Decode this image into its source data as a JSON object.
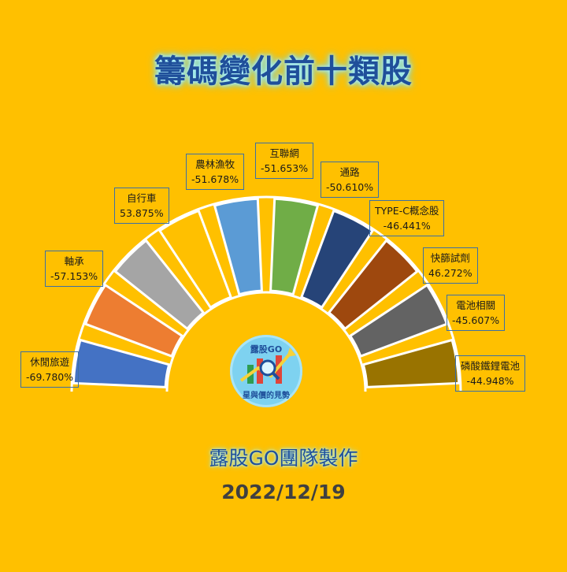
{
  "title": "籌碼變化前十類股",
  "footer": {
    "team": "露股GO團隊製作",
    "date": "2022/12/19"
  },
  "logo": {
    "top_text": "露股GO",
    "bottom_text": "星與價的見勢"
  },
  "chart_data": {
    "type": "bar",
    "layout": "radial-semicircle",
    "categories": [
      "休閒旅遊",
      "軸承",
      "自行車",
      "農林漁牧",
      "互聯網",
      "通路",
      "TYPE-C概念股",
      "快篩試劑",
      "電池相關",
      "磷酸鐵鋰電池"
    ],
    "values": [
      -69.78,
      -57.153,
      53.875,
      -51.678,
      -51.653,
      -50.61,
      -46.441,
      46.272,
      -45.607,
      -44.948
    ],
    "value_labels": [
      "-69.780%",
      "-57.153%",
      "53.875%",
      "-51.678%",
      "-51.653%",
      "-50.610%",
      "-46.441%",
      "46.272%",
      "-45.607%",
      "-44.948%"
    ],
    "colors": [
      "#4472C4",
      "#ED7D31",
      "#A5A5A5",
      "#FFC000",
      "#5B9BD5",
      "#70AD47",
      "#264478",
      "#9E480E",
      "#636363",
      "#997300"
    ]
  }
}
